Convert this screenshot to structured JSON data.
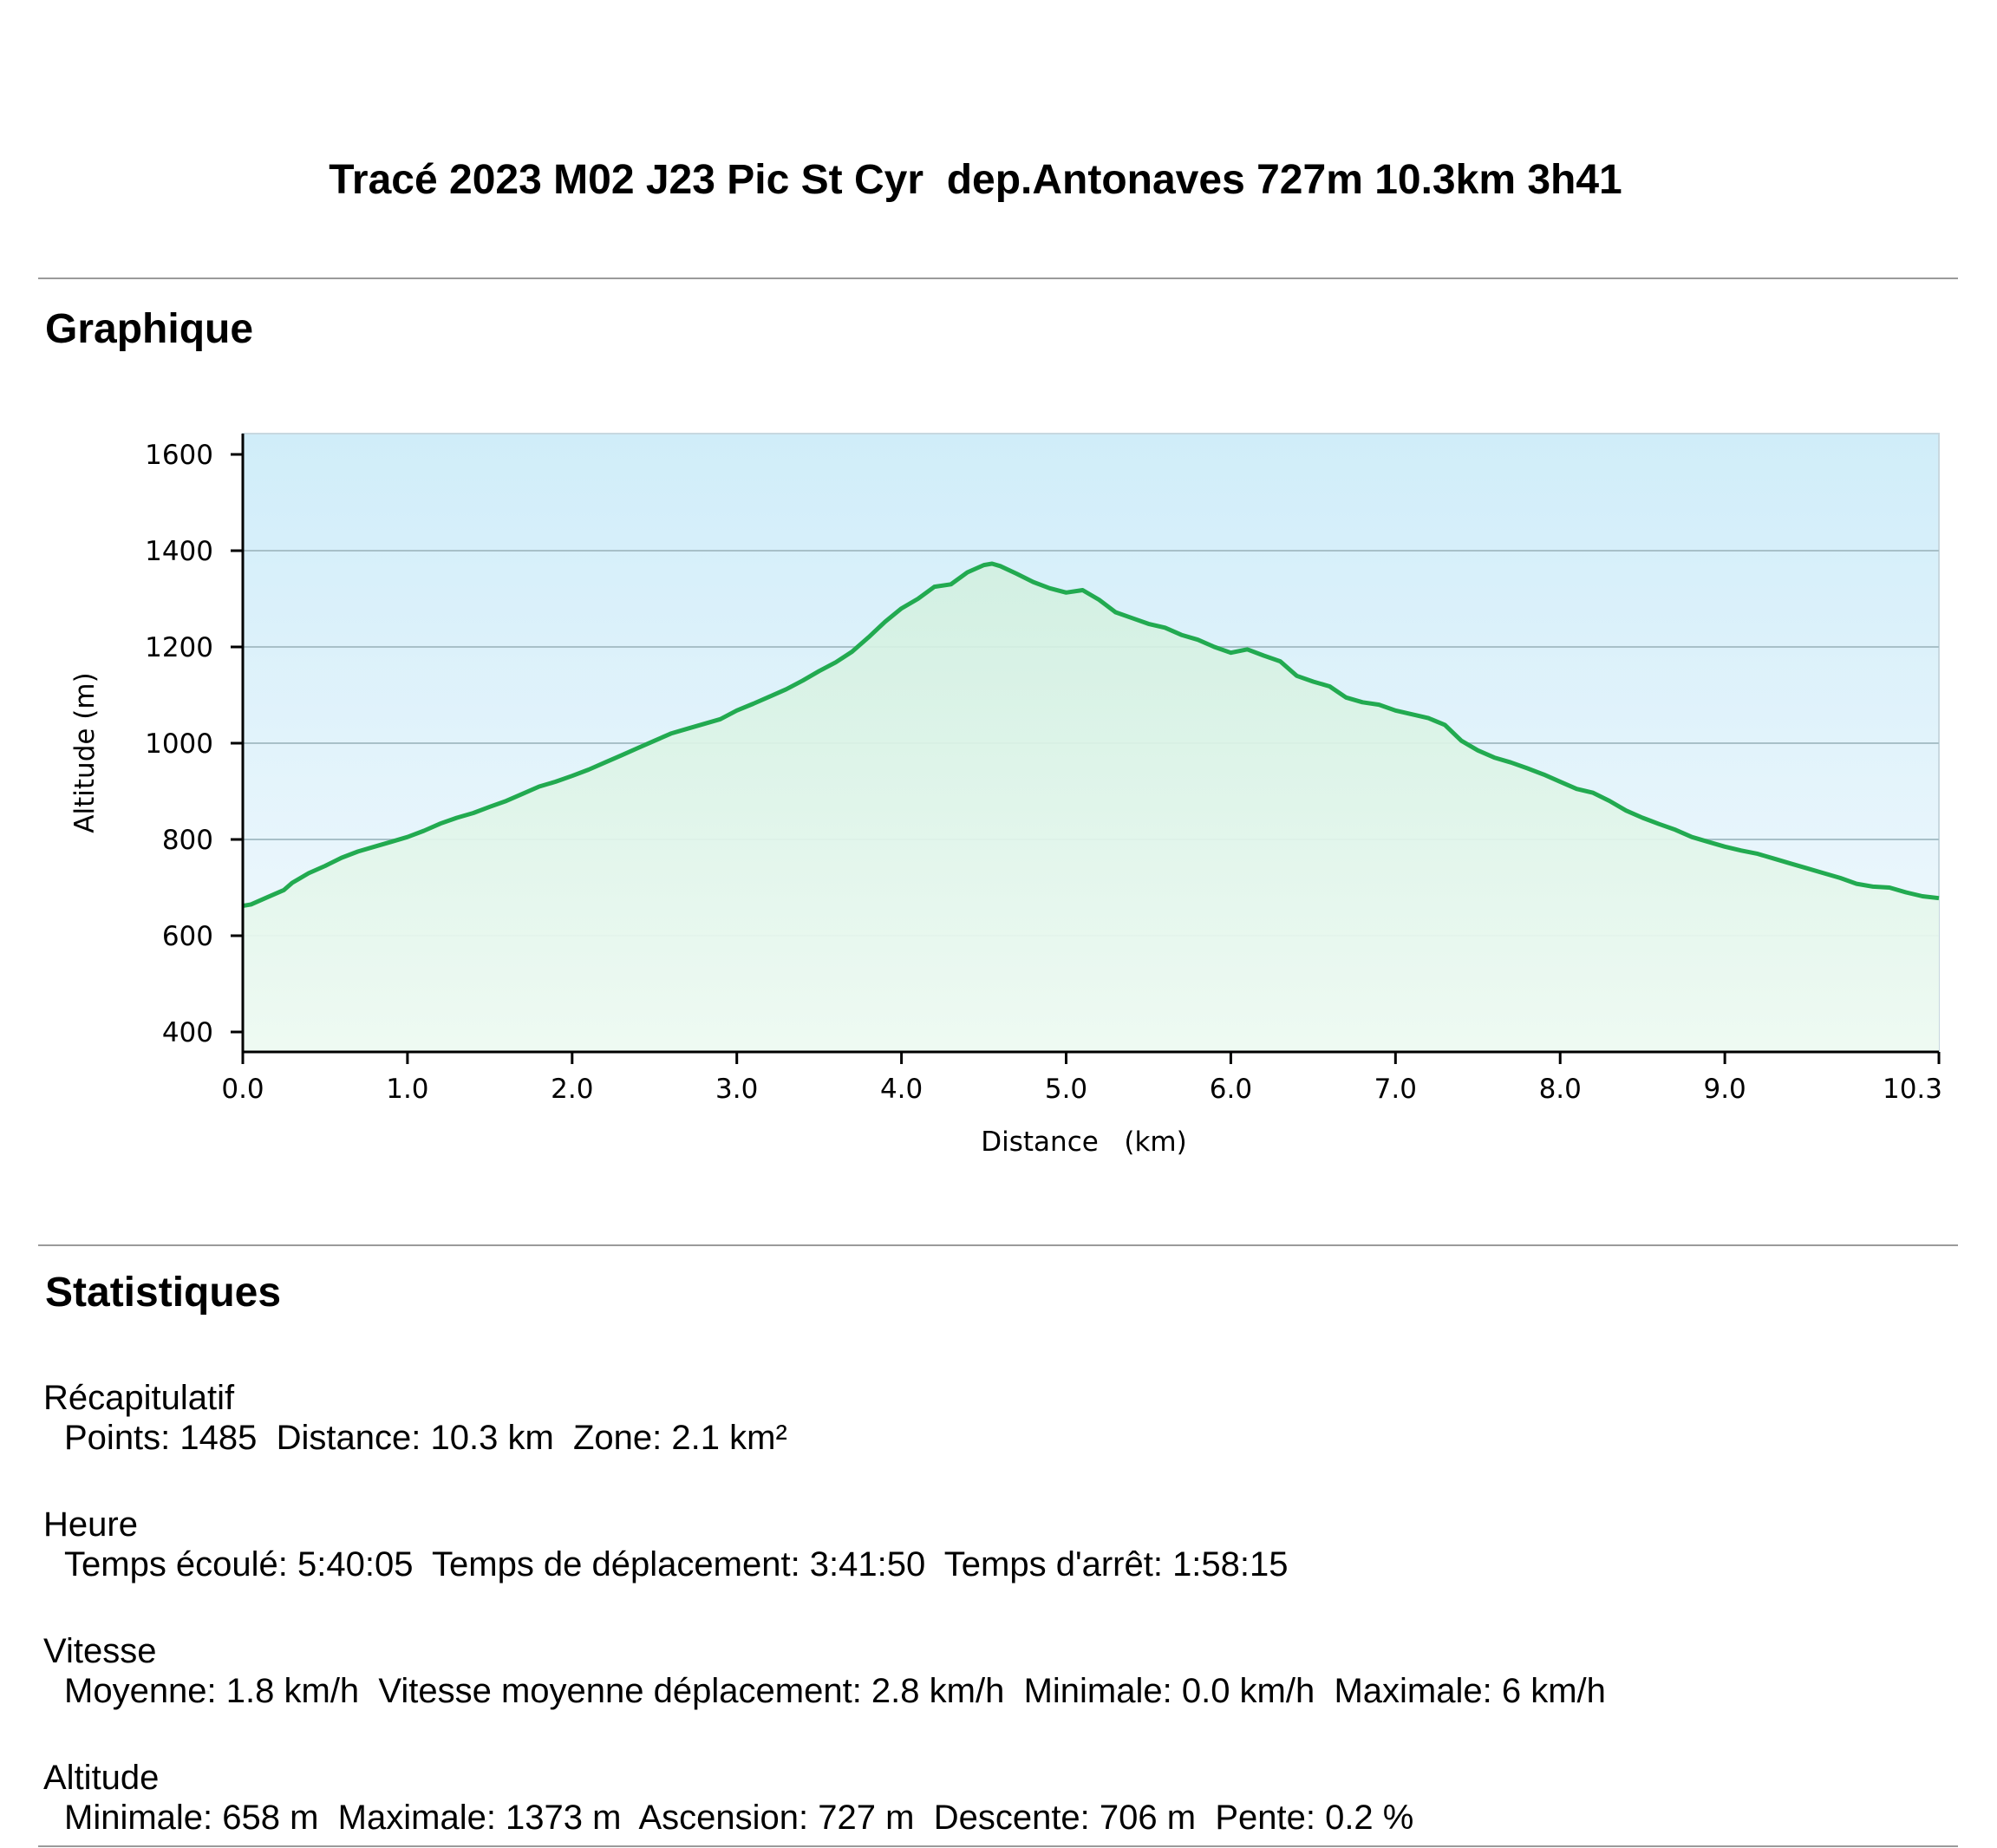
{
  "title": "Tracé 2023 M02 J23 Pic St Cyr  dep.Antonaves 727m 10.3km 3h41",
  "graph_section": {
    "heading": "Graphique"
  },
  "chart_data": {
    "type": "area",
    "xlabel": "Distance   (km)",
    "ylabel": "Altitude (m)",
    "xlim": [
      0,
      10.3
    ],
    "ylim": [
      400,
      1600
    ],
    "x_ticks": [
      "0.0",
      "1.0",
      "2.0",
      "3.0",
      "4.0",
      "5.0",
      "6.0",
      "7.0",
      "8.0",
      "9.0",
      "10.3"
    ],
    "y_ticks": [
      "400",
      "600",
      "800",
      "1000",
      "1200",
      "1400",
      "1600"
    ],
    "grid": "horizontal",
    "colors": {
      "line": "#22aa50",
      "fill_top": "#d2f0e0",
      "bg_top": "#d0edf9",
      "bg_bottom": "#f3f9fd",
      "grid": "#a8c0c8"
    },
    "series": [
      {
        "x": [
          0.0,
          0.05,
          0.15,
          0.25,
          0.3,
          0.4,
          0.5,
          0.6,
          0.7,
          0.8,
          0.9,
          1.0,
          1.1,
          1.2,
          1.3,
          1.4,
          1.5,
          1.6,
          1.7,
          1.8,
          1.9,
          2.0,
          2.1,
          2.2,
          2.3,
          2.4,
          2.5,
          2.6,
          2.7,
          2.8,
          2.9,
          3.0,
          3.1,
          3.2,
          3.3,
          3.4,
          3.5,
          3.6,
          3.7,
          3.8,
          3.9,
          4.0,
          4.1,
          4.2,
          4.3,
          4.4,
          4.5,
          4.55,
          4.6,
          4.7,
          4.8,
          4.9,
          5.0,
          5.1,
          5.2,
          5.3,
          5.4,
          5.5,
          5.6,
          5.7,
          5.8,
          5.9,
          6.0,
          6.1,
          6.2,
          6.3,
          6.4,
          6.5,
          6.6,
          6.7,
          6.8,
          6.9,
          7.0,
          7.1,
          7.2,
          7.3,
          7.4,
          7.5,
          7.6,
          7.7,
          7.8,
          7.9,
          8.0,
          8.1,
          8.2,
          8.3,
          8.4,
          8.5,
          8.6,
          8.7,
          8.8,
          8.9,
          9.0,
          9.1,
          9.2,
          9.3,
          9.4,
          9.5,
          9.6,
          9.7,
          9.8,
          9.9,
          10.0,
          10.1,
          10.2,
          10.3
        ],
        "y": [
          662,
          665,
          680,
          695,
          710,
          730,
          745,
          762,
          775,
          785,
          795,
          805,
          818,
          833,
          845,
          855,
          868,
          880,
          895,
          910,
          920,
          932,
          945,
          960,
          975,
          990,
          1005,
          1020,
          1030,
          1040,
          1050,
          1068,
          1082,
          1097,
          1112,
          1130,
          1150,
          1168,
          1190,
          1220,
          1252,
          1280,
          1300,
          1325,
          1330,
          1355,
          1370,
          1373,
          1368,
          1352,
          1335,
          1322,
          1313,
          1318,
          1298,
          1272,
          1260,
          1248,
          1240,
          1225,
          1215,
          1200,
          1188,
          1195,
          1182,
          1170,
          1140,
          1128,
          1118,
          1095,
          1085,
          1080,
          1068,
          1060,
          1052,
          1038,
          1005,
          985,
          970,
          960,
          948,
          935,
          920,
          905,
          897,
          880,
          860,
          845,
          832,
          820,
          805,
          795,
          785,
          777,
          770,
          760,
          750,
          740,
          730,
          720,
          708,
          702,
          700,
          690,
          682,
          678
        ]
      }
    ]
  },
  "stats_section": {
    "heading": "Statistiques",
    "groups": [
      {
        "title": "Récapitulatif",
        "items": [
          "Points: 1485",
          "Distance: 10.3 km",
          "Zone: 2.1 km²"
        ]
      },
      {
        "title": "Heure",
        "items": [
          "Temps écoulé: 5:40:05",
          "Temps de déplacement: 3:41:50",
          "Temps d'arrêt: 1:58:15"
        ]
      },
      {
        "title": "Vitesse",
        "items": [
          "Moyenne: 1.8 km/h",
          "Vitesse moyenne déplacement: 2.8 km/h",
          "Minimale: 0.0 km/h",
          "Maximale: 6 km/h"
        ]
      },
      {
        "title": "Altitude",
        "items": [
          "Minimale: 658 m",
          "Maximale: 1373 m",
          "Ascension: 727 m",
          "Descente: 706 m",
          "Pente: 0.2 %"
        ]
      }
    ]
  }
}
